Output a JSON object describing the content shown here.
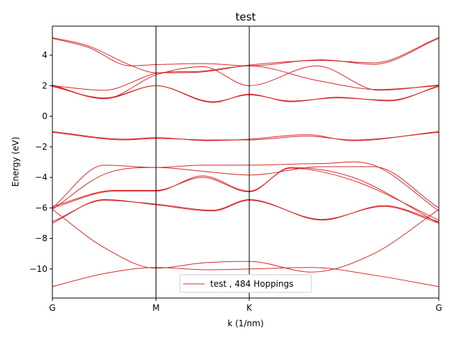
{
  "chart_data": {
    "type": "line",
    "title": "test",
    "xlabel": "k (1/nm)",
    "ylabel": "Energy (eV)",
    "xlim": [
      0,
      3.73
    ],
    "ylim": [
      -11.9,
      5.9
    ],
    "x_ticks": [
      {
        "value": 0,
        "label": "G"
      },
      {
        "value": 1.0,
        "label": "M"
      },
      {
        "value": 1.9,
        "label": "K"
      },
      {
        "value": 3.73,
        "label": "G"
      }
    ],
    "y_ticks": [
      {
        "value": 4,
        "label": "4"
      },
      {
        "value": 2,
        "label": "2"
      },
      {
        "value": 0,
        "label": "0"
      },
      {
        "value": -2,
        "label": "−2"
      },
      {
        "value": -4,
        "label": "−4"
      },
      {
        "value": -6,
        "label": "−6"
      },
      {
        "value": -8,
        "label": "−8"
      },
      {
        "value": -10,
        "label": "−10"
      }
    ],
    "high_symmetry_lines": [
      1.0,
      1.9
    ],
    "legend": {
      "label": "test , 484 Hoppings",
      "placement": "lower-center"
    },
    "series_color": "#d62728",
    "series": [
      {
        "x": [
          0,
          0.35,
          0.75,
          1.0,
          1.45,
          1.9,
          2.6,
          3.1,
          3.73
        ],
        "y": [
          5.1,
          4.5,
          3.3,
          3.38,
          3.45,
          3.3,
          3.7,
          3.4,
          5.1
        ]
      },
      {
        "x": [
          0,
          0.35,
          0.75,
          1.0,
          1.45,
          1.9,
          2.6,
          3.1,
          3.73
        ],
        "y": [
          5.15,
          4.6,
          3.35,
          2.85,
          2.9,
          3.35,
          3.65,
          3.5,
          5.15
        ]
      },
      {
        "x": [
          0,
          0.5,
          1.0,
          1.45,
          1.9,
          2.55,
          3.15,
          3.73
        ],
        "y": [
          2.0,
          1.7,
          2.8,
          2.95,
          3.3,
          2.35,
          1.75,
          2.0
        ]
      },
      {
        "x": [
          0,
          0.5,
          1.0,
          1.45,
          1.9,
          2.55,
          3.15,
          3.73
        ],
        "y": [
          2.05,
          1.15,
          2.7,
          3.25,
          2.0,
          3.3,
          1.7,
          2.05
        ]
      },
      {
        "x": [
          0,
          0.5,
          1.0,
          1.55,
          1.9,
          2.3,
          2.75,
          3.25,
          3.73
        ],
        "y": [
          1.95,
          1.2,
          2.0,
          0.95,
          1.4,
          1.0,
          1.2,
          1.05,
          1.95
        ]
      },
      {
        "x": [
          0,
          0.5,
          1.0,
          1.55,
          1.9,
          2.3,
          2.75,
          3.25,
          3.73
        ],
        "y": [
          2.0,
          1.15,
          2.0,
          0.9,
          1.45,
          0.95,
          1.25,
          1.0,
          2.0
        ]
      },
      {
        "x": [
          0,
          0.7,
          1.0,
          1.5,
          1.9,
          2.45,
          2.9,
          3.73
        ],
        "y": [
          -1.0,
          -1.5,
          -1.4,
          -1.6,
          -1.5,
          -1.2,
          -1.6,
          -1.0
        ]
      },
      {
        "x": [
          0,
          0.7,
          1.0,
          1.5,
          1.9,
          2.45,
          2.9,
          3.73
        ],
        "y": [
          -1.05,
          -1.55,
          -1.45,
          -1.55,
          -1.55,
          -1.3,
          -1.55,
          -1.05
        ]
      },
      {
        "x": [
          0,
          0.5,
          1.0,
          1.45,
          1.9,
          2.6,
          3.1,
          3.73
        ],
        "y": [
          -6.0,
          -3.2,
          -3.35,
          -3.2,
          -3.2,
          -3.1,
          -3.2,
          -6.2
        ]
      },
      {
        "x": [
          0,
          0.5,
          1.0,
          1.45,
          1.9,
          2.6,
          3.1,
          3.73
        ],
        "y": [
          -6.1,
          -3.8,
          -3.35,
          -3.6,
          -3.85,
          -3.3,
          -3.3,
          -6.0
        ]
      },
      {
        "x": [
          0,
          0.6,
          1.0,
          1.45,
          1.9,
          2.3,
          2.9,
          3.73
        ],
        "y": [
          -6.0,
          -4.9,
          -4.9,
          -3.9,
          -4.9,
          -3.4,
          -4.2,
          -6.8
        ]
      },
      {
        "x": [
          0,
          0.6,
          1.0,
          1.45,
          1.9,
          2.3,
          2.9,
          3.73
        ],
        "y": [
          -5.9,
          -4.85,
          -4.85,
          -4.0,
          -4.95,
          -3.35,
          -4.0,
          -7.0
        ]
      },
      {
        "x": [
          0,
          0.5,
          1.0,
          1.55,
          1.9,
          2.6,
          3.2,
          3.73
        ],
        "y": [
          -6.9,
          -5.5,
          -5.75,
          -6.15,
          -5.45,
          -6.8,
          -5.85,
          -6.9
        ]
      },
      {
        "x": [
          0,
          0.5,
          1.0,
          1.55,
          1.9,
          2.6,
          3.2,
          3.73
        ],
        "y": [
          -7.0,
          -5.45,
          -5.8,
          -6.2,
          -5.5,
          -6.75,
          -5.9,
          -7.0
        ]
      },
      {
        "x": [
          0,
          0.5,
          1.0,
          1.45,
          1.9,
          2.5,
          3.1,
          3.73
        ],
        "y": [
          -6.1,
          -8.6,
          -9.95,
          -9.6,
          -9.5,
          -10.2,
          -9.0,
          -6.1
        ]
      },
      {
        "x": [
          0,
          0.5,
          1.0,
          1.5,
          1.9,
          2.5,
          3.1,
          3.73
        ],
        "y": [
          -11.15,
          -10.3,
          -9.9,
          -10.05,
          -10.0,
          -9.9,
          -10.4,
          -11.15
        ]
      }
    ]
  }
}
